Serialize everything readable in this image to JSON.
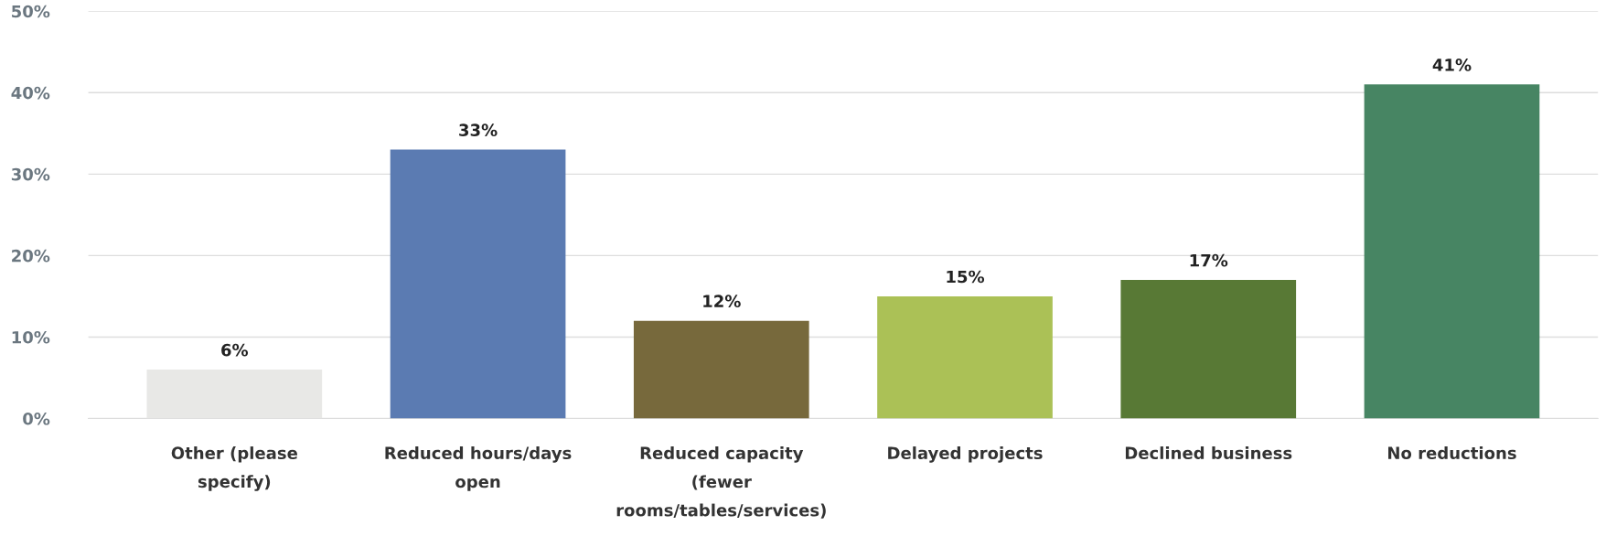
{
  "chart_data": {
    "type": "bar",
    "categories": [
      "Other (please specify)",
      "Reduced hours/days open",
      "Reduced capacity (fewer rooms/tables/services)",
      "Delayed projects",
      "Declined business",
      "No reductions"
    ],
    "values": [
      6,
      33,
      12,
      15,
      17,
      41
    ],
    "colors": [
      "#e8e8e6",
      "#5b7bb2",
      "#77693c",
      "#abc156",
      "#587935",
      "#478563"
    ],
    "value_labels": [
      "6%",
      "33%",
      "12%",
      "15%",
      "17%",
      "41%"
    ],
    "ylim": [
      0,
      50
    ],
    "yticks": [
      {
        "value": 0,
        "label": "0%"
      },
      {
        "value": 10,
        "label": "10%"
      },
      {
        "value": 20,
        "label": "20%"
      },
      {
        "value": 30,
        "label": "30%"
      },
      {
        "value": 40,
        "label": "40%"
      },
      {
        "value": 50,
        "label": "50%"
      }
    ],
    "grid": "y"
  }
}
